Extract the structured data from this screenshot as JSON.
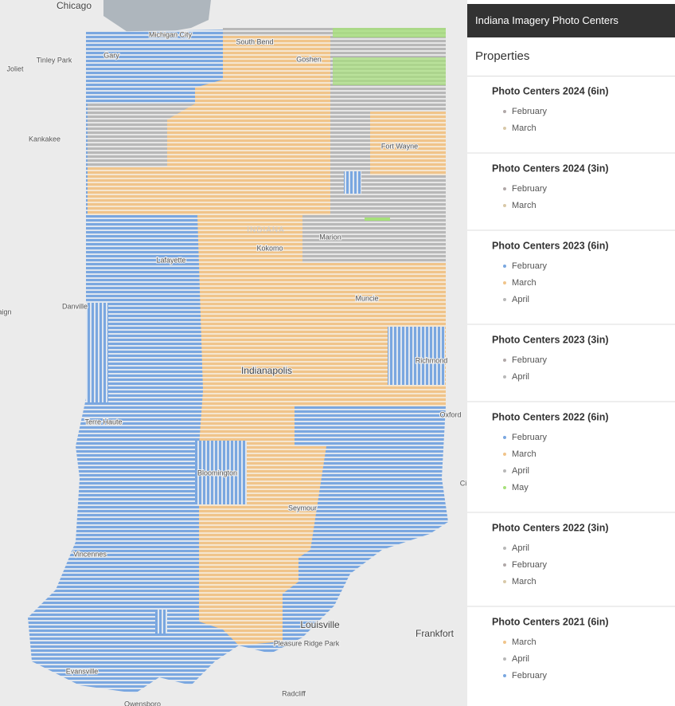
{
  "panel": {
    "title": "Indiana Imagery Photo Centers",
    "subtitle": "Properties",
    "layers": [
      {
        "name": "Photo Centers 2024 (6in)",
        "items": [
          {
            "label": "February",
            "color": "#b0a8a8"
          },
          {
            "label": "March",
            "color": "#d8c8a8"
          }
        ]
      },
      {
        "name": "Photo Centers 2024 (3in)",
        "items": [
          {
            "label": "February",
            "color": "#b0a8a8"
          },
          {
            "label": "March",
            "color": "#d8c8a8"
          }
        ]
      },
      {
        "name": "Photo Centers 2023 (6in)",
        "items": [
          {
            "label": "February",
            "color": "#7aa7e0"
          },
          {
            "label": "March",
            "color": "#f0c48a"
          },
          {
            "label": "April",
            "color": "#b8b8b8"
          }
        ]
      },
      {
        "name": "Photo Centers 2023 (3in)",
        "items": [
          {
            "label": "February",
            "color": "#b0a8a8"
          },
          {
            "label": "April",
            "color": "#b8b8b8"
          }
        ]
      },
      {
        "name": "Photo Centers 2022 (6in)",
        "items": [
          {
            "label": "February",
            "color": "#7aa7e0"
          },
          {
            "label": "March",
            "color": "#f0c48a"
          },
          {
            "label": "April",
            "color": "#b8b8b8"
          },
          {
            "label": "May",
            "color": "#a6e07a"
          }
        ]
      },
      {
        "name": "Photo Centers 2022 (3in)",
        "items": [
          {
            "label": "April",
            "color": "#b8b8b8"
          },
          {
            "label": "February",
            "color": "#b0a8a8"
          },
          {
            "label": "March",
            "color": "#d8c8a8"
          }
        ]
      },
      {
        "name": "Photo Centers 2021 (6in)",
        "items": [
          {
            "label": "March",
            "color": "#f0c48a"
          },
          {
            "label": "April",
            "color": "#b8b8b8"
          },
          {
            "label": "February",
            "color": "#7aa7e0"
          }
        ]
      }
    ]
  },
  "map": {
    "labels": [
      "Chicago",
      "Michigan City",
      "Gary",
      "Tinley Park",
      "Joliet",
      "Kankakee",
      "South Bend",
      "Goshen",
      "Fort Wayne",
      "INDIANA",
      "Marion",
      "Kokomo",
      "Lafayette",
      "Danville",
      "aign",
      "Muncie",
      "Indianapolis",
      "Richmond",
      "Terre Haute",
      "Oxford",
      "Bloomington",
      "Ci",
      "Seymour",
      "Vincennes",
      "Louisville",
      "Frankfort",
      "Pleasure Ridge Park",
      "Evansville",
      "Radcliff",
      "Owensboro"
    ]
  }
}
